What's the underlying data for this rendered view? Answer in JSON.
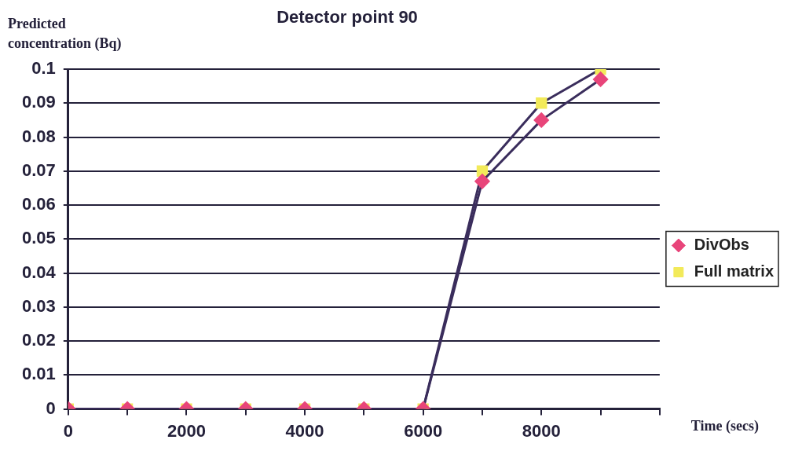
{
  "chart_data": {
    "type": "line",
    "title": "Detector point 90",
    "xlabel": "Time (secs)",
    "ylabel": "Predicted concentration (Bq)",
    "x": [
      0,
      1000,
      2000,
      3000,
      4000,
      5000,
      6000,
      7000,
      8000,
      9000
    ],
    "series": [
      {
        "name": "DivObs",
        "color": "#3a2d5c",
        "colors": [
          "#e8457a",
          "#e8457a",
          "#e8457a",
          "#e8457a",
          "#e8457a",
          "#e8457a",
          "#e8457a",
          "#e8457a",
          "#e8457a",
          "#e8457a"
        ],
        "marker": "diamond",
        "values": [
          0,
          0,
          0,
          0,
          0,
          0,
          0,
          0.067,
          0.085,
          0.097
        ]
      },
      {
        "name": "Full matrix",
        "color": "#3a2d5c",
        "colors": [
          "#f2ea5a",
          "#f2ea5a",
          "#f2ea5a",
          "#f2ea5a",
          "#f2ea5a",
          "#f2ea5a",
          "#f2ea5a",
          "#f2ea5a",
          "#f2ea5a",
          "#f2ea5a"
        ],
        "marker": "square",
        "values": [
          0,
          0,
          0,
          0,
          0,
          0,
          0,
          0.07,
          0.09,
          0.1
        ]
      }
    ],
    "xlim": [
      0,
      10000
    ],
    "xticks": [
      0,
      {
        "value": 1000,
        "label": null
      },
      2000,
      {
        "value": 3000,
        "label": null
      },
      4000,
      {
        "value": 5000,
        "label": null
      },
      6000,
      {
        "value": 7000,
        "label": null
      },
      8000,
      {
        "value": 9000,
        "label": null
      },
      {
        "value": 10000,
        "label": null
      }
    ],
    "ylim": [
      0,
      0.1
    ],
    "yticks": [
      0,
      0.01,
      0.02,
      0.03,
      0.04,
      0.05,
      0.06,
      0.07,
      0.08,
      0.09,
      0.1
    ],
    "grid": "y",
    "legend": "right",
    "line_style": "solid"
  }
}
